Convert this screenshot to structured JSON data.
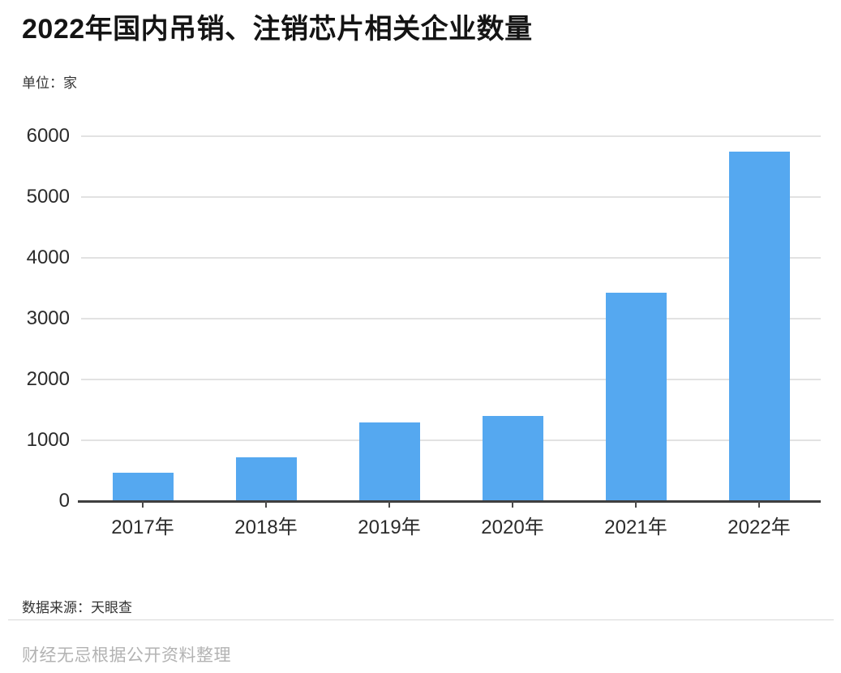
{
  "page": {
    "title": "2022年国内吊销、注销芯片相关企业数量",
    "unit_label": "单位：家",
    "source_label": "数据来源：天眼查",
    "credit_label": "财经无忌根据公开资料整理"
  },
  "colors": {
    "bar": "#55a8f0",
    "axis_line": "#3f3f3f",
    "gridline": "#e2e2e2",
    "title_text": "#141414",
    "tick_text": "#2b2b2b",
    "credit_text": "#b3b3b3"
  },
  "chart_data": {
    "type": "bar",
    "title": "2022年国内吊销、注销芯片相关企业数量",
    "unit": "家",
    "categories": [
      "2017年",
      "2018年",
      "2019年",
      "2020年",
      "2021年",
      "2022年"
    ],
    "values": [
      461,
      715,
      1294,
      1397,
      3420,
      5746
    ],
    "xlabel": "",
    "ylabel": "单位：家",
    "ylim": [
      0,
      6000
    ],
    "yticks": [
      0,
      1000,
      2000,
      3000,
      4000,
      5000,
      6000
    ],
    "grid": true,
    "legend_position": "none",
    "source": "天眼查"
  }
}
